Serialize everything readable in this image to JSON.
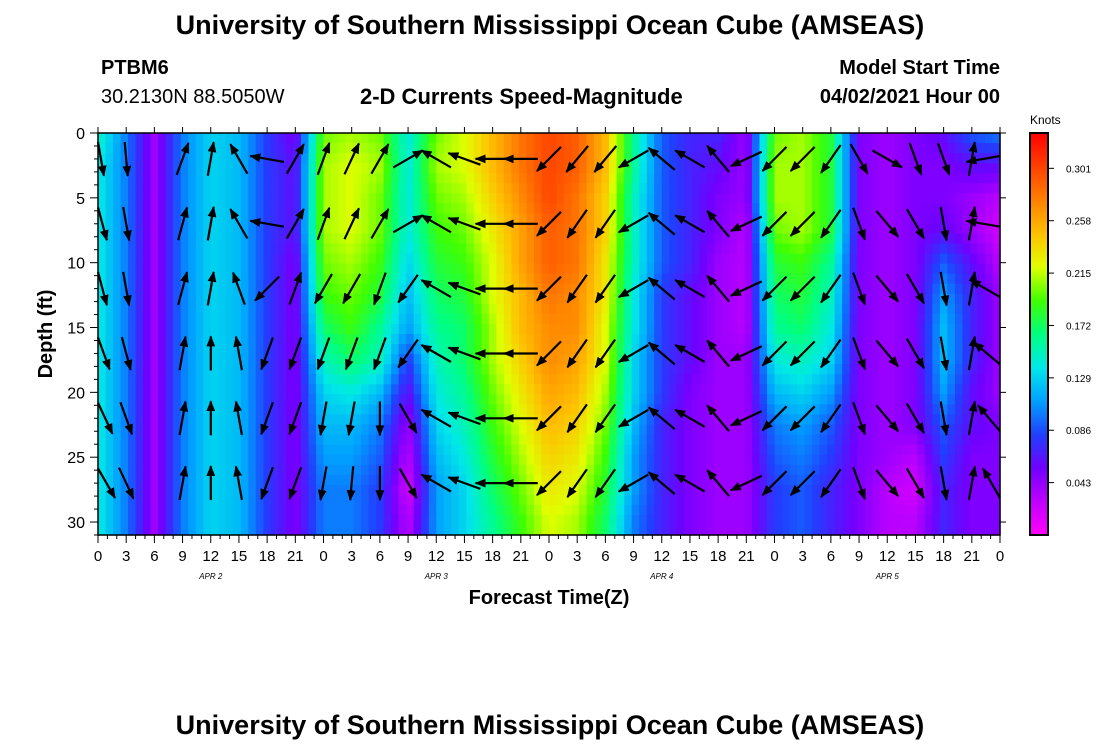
{
  "page": {
    "title_top": "University of Southern Mississippi Ocean Cube (AMSEAS)",
    "title_bottom": "University of Southern Mississippi Ocean Cube (AMSEAS)",
    "station_id": "PTBM6",
    "coordinates": "30.2130N  88.5050W",
    "model_start_label": "Model Start Time",
    "model_start_value": "04/02/2021 Hour 00"
  },
  "colors": {
    "palette": [
      "#ff00ff",
      "#c000ff",
      "#7000ff",
      "#2040ff",
      "#00a0ff",
      "#00e8e8",
      "#00ff80",
      "#40ff00",
      "#e0ff00",
      "#ffc000",
      "#ff8000",
      "#ff4000",
      "#ff0000"
    ],
    "frame": "#000000",
    "arrow": "#000000"
  },
  "chart_data": {
    "type": "heatmap",
    "title": "2-D Currents Speed-Magnitude",
    "xlabel": "Forecast Time(Z)",
    "ylabel": "Depth (ft)",
    "x_ticks": [
      "0",
      "3",
      "6",
      "9",
      "12",
      "15",
      "18",
      "21",
      "0",
      "3",
      "6",
      "9",
      "12",
      "15",
      "18",
      "21",
      "0",
      "3",
      "6",
      "9",
      "12",
      "15",
      "18",
      "21",
      "0",
      "3",
      "6",
      "9",
      "12",
      "15",
      "18",
      "21",
      "0"
    ],
    "day_labels": [
      "APR  2",
      "APR  3",
      "APR  4",
      "APR  5"
    ],
    "xlim_hours": [
      0,
      96
    ],
    "y_ticks": [
      0,
      5,
      10,
      15,
      20,
      25,
      30
    ],
    "ylim_ft": [
      0,
      31
    ],
    "colorbar": {
      "unit": "Knots",
      "ticks": [
        0.301,
        0.258,
        0.215,
        0.172,
        0.129,
        0.086,
        0.043
      ],
      "range": [
        0.0,
        0.33
      ]
    },
    "depths_ft": [
      0,
      2.5,
      5,
      7.5,
      10,
      12.5,
      15,
      17.5,
      20,
      22.5,
      25,
      27.5,
      30
    ],
    "hours": [
      0,
      3,
      6,
      9,
      12,
      15,
      18,
      21,
      24,
      27,
      30,
      33,
      36,
      39,
      42,
      45,
      48,
      51,
      54,
      57,
      60,
      63,
      66,
      69,
      72,
      75,
      78,
      81,
      84,
      87,
      90,
      93,
      96
    ],
    "speed_knots": [
      [
        0.15,
        0.1,
        0.04,
        0.1,
        0.13,
        0.12,
        0.08,
        0.05,
        0.2,
        0.21,
        0.2,
        0.14,
        0.2,
        0.22,
        0.25,
        0.28,
        0.3,
        0.29,
        0.25,
        0.16,
        0.09,
        0.07,
        0.07,
        0.04,
        0.2,
        0.21,
        0.18,
        0.05,
        0.04,
        0.05,
        0.06,
        0.09,
        0.1
      ],
      [
        0.14,
        0.1,
        0.04,
        0.1,
        0.13,
        0.12,
        0.08,
        0.06,
        0.21,
        0.22,
        0.21,
        0.14,
        0.21,
        0.22,
        0.25,
        0.28,
        0.3,
        0.29,
        0.25,
        0.16,
        0.09,
        0.07,
        0.06,
        0.04,
        0.21,
        0.21,
        0.18,
        0.05,
        0.04,
        0.05,
        0.05,
        0.06,
        0.06
      ],
      [
        0.14,
        0.1,
        0.04,
        0.1,
        0.13,
        0.12,
        0.08,
        0.06,
        0.21,
        0.22,
        0.2,
        0.14,
        0.2,
        0.21,
        0.24,
        0.27,
        0.3,
        0.28,
        0.24,
        0.15,
        0.09,
        0.07,
        0.05,
        0.04,
        0.21,
        0.21,
        0.18,
        0.05,
        0.04,
        0.05,
        0.05,
        0.04,
        0.03
      ],
      [
        0.14,
        0.1,
        0.04,
        0.1,
        0.13,
        0.12,
        0.08,
        0.06,
        0.21,
        0.22,
        0.2,
        0.14,
        0.19,
        0.2,
        0.23,
        0.26,
        0.29,
        0.28,
        0.24,
        0.15,
        0.09,
        0.07,
        0.05,
        0.03,
        0.2,
        0.21,
        0.18,
        0.05,
        0.04,
        0.05,
        0.06,
        0.04,
        0.02
      ],
      [
        0.14,
        0.1,
        0.04,
        0.1,
        0.13,
        0.12,
        0.08,
        0.05,
        0.2,
        0.21,
        0.19,
        0.13,
        0.18,
        0.19,
        0.22,
        0.26,
        0.29,
        0.28,
        0.23,
        0.15,
        0.09,
        0.07,
        0.04,
        0.03,
        0.18,
        0.19,
        0.16,
        0.05,
        0.04,
        0.05,
        0.09,
        0.06,
        0.03
      ],
      [
        0.14,
        0.1,
        0.04,
        0.1,
        0.13,
        0.12,
        0.08,
        0.05,
        0.19,
        0.2,
        0.18,
        0.12,
        0.17,
        0.18,
        0.22,
        0.25,
        0.28,
        0.27,
        0.23,
        0.14,
        0.08,
        0.06,
        0.04,
        0.03,
        0.17,
        0.18,
        0.15,
        0.05,
        0.04,
        0.05,
        0.11,
        0.07,
        0.04
      ],
      [
        0.14,
        0.1,
        0.04,
        0.1,
        0.13,
        0.12,
        0.08,
        0.05,
        0.17,
        0.19,
        0.16,
        0.11,
        0.16,
        0.17,
        0.21,
        0.25,
        0.27,
        0.27,
        0.22,
        0.14,
        0.08,
        0.06,
        0.04,
        0.03,
        0.16,
        0.17,
        0.14,
        0.05,
        0.04,
        0.05,
        0.12,
        0.07,
        0.04
      ],
      [
        0.14,
        0.1,
        0.04,
        0.1,
        0.13,
        0.12,
        0.08,
        0.05,
        0.15,
        0.17,
        0.15,
        0.08,
        0.15,
        0.17,
        0.21,
        0.24,
        0.27,
        0.26,
        0.22,
        0.13,
        0.08,
        0.06,
        0.04,
        0.04,
        0.14,
        0.15,
        0.13,
        0.05,
        0.04,
        0.05,
        0.12,
        0.07,
        0.04
      ],
      [
        0.14,
        0.1,
        0.04,
        0.1,
        0.13,
        0.12,
        0.08,
        0.05,
        0.13,
        0.14,
        0.12,
        0.06,
        0.14,
        0.16,
        0.2,
        0.23,
        0.26,
        0.25,
        0.21,
        0.13,
        0.08,
        0.05,
        0.04,
        0.04,
        0.12,
        0.13,
        0.11,
        0.05,
        0.04,
        0.05,
        0.11,
        0.06,
        0.04
      ],
      [
        0.14,
        0.1,
        0.04,
        0.1,
        0.13,
        0.12,
        0.08,
        0.05,
        0.12,
        0.12,
        0.1,
        0.04,
        0.13,
        0.15,
        0.19,
        0.22,
        0.25,
        0.24,
        0.2,
        0.12,
        0.07,
        0.05,
        0.04,
        0.04,
        0.1,
        0.11,
        0.09,
        0.05,
        0.04,
        0.05,
        0.09,
        0.06,
        0.05
      ],
      [
        0.14,
        0.1,
        0.04,
        0.1,
        0.13,
        0.12,
        0.08,
        0.05,
        0.11,
        0.11,
        0.09,
        0.03,
        0.12,
        0.14,
        0.18,
        0.21,
        0.24,
        0.23,
        0.19,
        0.11,
        0.07,
        0.05,
        0.04,
        0.04,
        0.09,
        0.1,
        0.08,
        0.05,
        0.04,
        0.03,
        0.08,
        0.05,
        0.05
      ],
      [
        0.14,
        0.1,
        0.04,
        0.1,
        0.13,
        0.12,
        0.08,
        0.05,
        0.1,
        0.1,
        0.08,
        0.02,
        0.11,
        0.13,
        0.17,
        0.2,
        0.23,
        0.22,
        0.18,
        0.11,
        0.07,
        0.05,
        0.04,
        0.04,
        0.08,
        0.09,
        0.07,
        0.05,
        0.03,
        0.02,
        0.07,
        0.05,
        0.05
      ],
      [
        0.14,
        0.1,
        0.04,
        0.1,
        0.13,
        0.12,
        0.08,
        0.05,
        0.1,
        0.1,
        0.08,
        0.03,
        0.11,
        0.13,
        0.16,
        0.19,
        0.22,
        0.21,
        0.17,
        0.1,
        0.07,
        0.05,
        0.04,
        0.04,
        0.08,
        0.09,
        0.07,
        0.05,
        0.03,
        0.03,
        0.07,
        0.05,
        0.05
      ]
    ],
    "arrows": {
      "hours": [
        0,
        3,
        9,
        12,
        15,
        18,
        21,
        24,
        27,
        30,
        33,
        36,
        39,
        42,
        45,
        48,
        51,
        54,
        57,
        60,
        63,
        66,
        69,
        72,
        75,
        78,
        81,
        84,
        87,
        90,
        93,
        96
      ],
      "depths_ft": [
        2,
        7,
        12,
        17,
        22,
        27
      ],
      "direction_deg": [
        [
          170,
          175,
          20,
          10,
          330,
          280,
          30,
          20,
          25,
          30,
          60,
          300,
          290,
          270,
          270,
          225,
          220,
          220,
          240,
          310,
          300,
          320,
          245,
          225,
          225,
          215,
          150,
          120,
          160,
          160,
          10,
          260
        ],
        [
          165,
          170,
          15,
          10,
          330,
          280,
          30,
          20,
          25,
          30,
          60,
          300,
          290,
          270,
          270,
          225,
          215,
          215,
          240,
          310,
          300,
          320,
          245,
          225,
          225,
          215,
          160,
          140,
          150,
          170,
          10,
          280
        ],
        [
          165,
          170,
          15,
          10,
          340,
          225,
          20,
          210,
          210,
          200,
          215,
          300,
          290,
          270,
          270,
          225,
          215,
          215,
          240,
          310,
          300,
          320,
          245,
          225,
          225,
          215,
          160,
          140,
          150,
          170,
          10,
          300
        ],
        [
          160,
          165,
          10,
          0,
          350,
          200,
          200,
          200,
          200,
          200,
          215,
          300,
          290,
          270,
          270,
          225,
          215,
          215,
          240,
          310,
          300,
          320,
          245,
          225,
          225,
          215,
          160,
          140,
          150,
          170,
          10,
          310
        ],
        [
          155,
          160,
          10,
          0,
          350,
          200,
          200,
          190,
          190,
          180,
          150,
          300,
          290,
          270,
          270,
          225,
          215,
          215,
          240,
          310,
          300,
          320,
          245,
          225,
          225,
          215,
          160,
          140,
          150,
          170,
          10,
          320
        ],
        [
          150,
          155,
          10,
          0,
          350,
          200,
          200,
          190,
          185,
          180,
          150,
          300,
          290,
          270,
          270,
          225,
          215,
          215,
          240,
          310,
          300,
          320,
          245,
          225,
          225,
          215,
          160,
          140,
          150,
          170,
          10,
          330
        ]
      ]
    }
  }
}
